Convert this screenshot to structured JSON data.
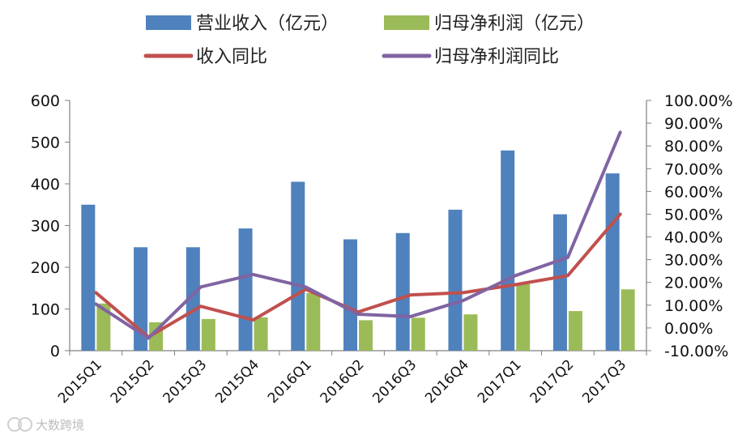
{
  "chart_data": {
    "type": "bar",
    "categories": [
      "2015Q1",
      "2015Q2",
      "2015Q3",
      "2015Q4",
      "2016Q1",
      "2016Q2",
      "2016Q3",
      "2016Q4",
      "2017Q1",
      "2017Q2",
      "2017Q3"
    ],
    "series": [
      {
        "name": "营业收入（亿元）",
        "kind": "bar",
        "axis": "left",
        "color": "#4F81BD",
        "values": [
          350,
          248,
          248,
          293,
          405,
          267,
          282,
          338,
          480,
          327,
          425
        ]
      },
      {
        "name": "归母净利润（亿元）",
        "kind": "bar",
        "axis": "left",
        "color": "#9BBB59",
        "values": [
          113,
          68,
          76,
          80,
          138,
          73,
          79,
          87,
          160,
          95,
          147
        ]
      },
      {
        "name": "收入同比",
        "kind": "line",
        "axis": "right",
        "color": "#C0504D",
        "values": [
          15.5,
          -4.0,
          9.5,
          3.5,
          17.0,
          7.0,
          14.5,
          15.5,
          19.0,
          23.0,
          50.0
        ]
      },
      {
        "name": "归母净利润同比",
        "kind": "line",
        "axis": "right",
        "color": "#8064A2",
        "values": [
          10.5,
          -4.5,
          18.0,
          23.5,
          18.0,
          6.0,
          5.0,
          12.0,
          23.0,
          31.0,
          86.0
        ]
      }
    ],
    "y_left": {
      "lim": [
        0,
        600
      ],
      "ticks": [
        "0",
        "100",
        "200",
        "300",
        "400",
        "500",
        "600"
      ]
    },
    "y_right": {
      "lim": [
        -10,
        100
      ],
      "ticks": [
        "-10.00%",
        "0.00%",
        "10.00%",
        "20.00%",
        "30.00%",
        "40.00%",
        "50.00%",
        "60.00%",
        "70.00%",
        "80.00%",
        "90.00%",
        "100.00%"
      ]
    },
    "legend_position": "top",
    "grid": false
  },
  "watermark": "大数跨境"
}
